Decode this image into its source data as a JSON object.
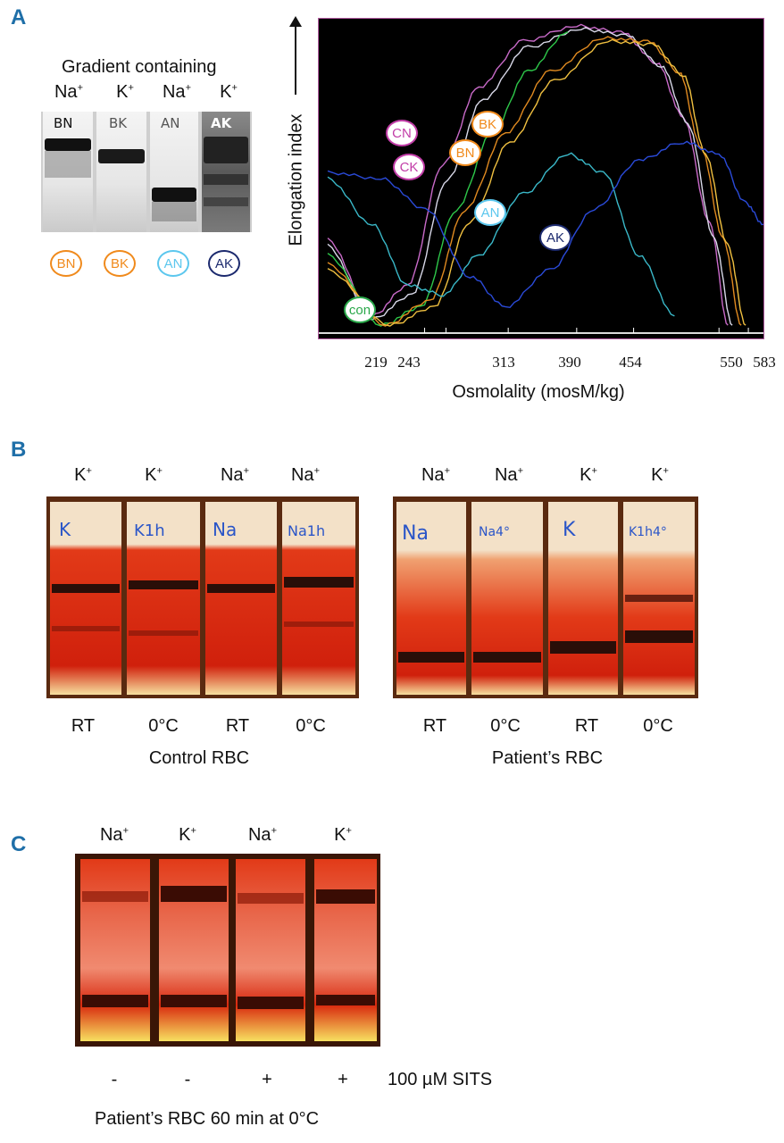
{
  "panels": {
    "a": "A",
    "b": "B",
    "c": "C"
  },
  "panel_a": {
    "gel_title": "Gradient containing",
    "gel_columns": [
      {
        "ion": "Na",
        "charge": "+",
        "scrawl": "BN"
      },
      {
        "ion": "K",
        "charge": "+",
        "scrawl": "BK"
      },
      {
        "ion": "Na",
        "charge": "+",
        "scrawl": "AN"
      },
      {
        "ion": "K",
        "charge": "+",
        "scrawl": "AK"
      }
    ],
    "sample_circles": [
      "BN",
      "BK",
      "AN",
      "AK"
    ],
    "colors": {
      "BN": "#f08a1c",
      "BK": "#f08a1c",
      "AN": "#5cc7ee",
      "AK": "#1c2a6e",
      "CN": "#c23ea8",
      "CK": "#c23ea8",
      "con": "#2aa84a"
    }
  },
  "chart_data": {
    "type": "line",
    "title": "",
    "xlabel": "Osmolality (mosM/kg)",
    "ylabel": "Elongation index",
    "x_ticks": [
      "219",
      "243",
      "313",
      "390",
      "454",
      "550",
      "583"
    ],
    "x_range": [
      100,
      600
    ],
    "series_labels": [
      "CN",
      "CK",
      "BK",
      "BN",
      "AN",
      "AK",
      "con"
    ],
    "series": [
      {
        "name": "CN",
        "color": "#c86ac8",
        "x": [
          110,
          160,
          200,
          240,
          280,
          330,
          390,
          440,
          480,
          510,
          540,
          560
        ],
        "y": [
          0.3,
          0.05,
          0.15,
          0.55,
          0.8,
          0.95,
          1.0,
          0.98,
          0.88,
          0.7,
          0.35,
          0.02
        ]
      },
      {
        "name": "CK",
        "color": "#d8d8e8",
        "x": [
          110,
          160,
          205,
          245,
          285,
          335,
          395,
          445,
          485,
          515,
          545,
          565
        ],
        "y": [
          0.28,
          0.04,
          0.12,
          0.5,
          0.76,
          0.93,
          0.99,
          0.97,
          0.87,
          0.68,
          0.3,
          0.02
        ]
      },
      {
        "name": "con",
        "color": "#2ec84a",
        "x": [
          110,
          170,
          215,
          255,
          295,
          335,
          380
        ],
        "y": [
          0.25,
          0.02,
          0.08,
          0.4,
          0.65,
          0.85,
          0.98
        ]
      },
      {
        "name": "BN",
        "color": "#e08a20",
        "x": [
          110,
          175,
          225,
          265,
          310,
          360,
          420,
          470,
          505,
          530,
          555,
          575
        ],
        "y": [
          0.22,
          0.02,
          0.1,
          0.4,
          0.65,
          0.85,
          0.96,
          0.95,
          0.85,
          0.6,
          0.3,
          0.02
        ]
      },
      {
        "name": "BK",
        "color": "#f0c040",
        "x": [
          110,
          180,
          230,
          270,
          315,
          365,
          425,
          475,
          510,
          535,
          560,
          580
        ],
        "y": [
          0.2,
          0.02,
          0.08,
          0.36,
          0.62,
          0.82,
          0.95,
          0.94,
          0.84,
          0.58,
          0.28,
          0.02
        ]
      },
      {
        "name": "AN",
        "color": "#3ab8c8",
        "x": [
          110,
          160,
          200,
          240,
          280,
          330,
          380,
          420,
          460,
          500
        ],
        "y": [
          0.5,
          0.35,
          0.15,
          0.12,
          0.25,
          0.45,
          0.58,
          0.52,
          0.25,
          0.05
        ]
      },
      {
        "name": "AK",
        "color": "#2a4ad8",
        "x": [
          110,
          170,
          220,
          270,
          310,
          360,
          410,
          460,
          510,
          550,
          580,
          600
        ],
        "y": [
          0.52,
          0.5,
          0.4,
          0.18,
          0.08,
          0.2,
          0.4,
          0.56,
          0.62,
          0.58,
          0.42,
          0.35
        ]
      }
    ]
  },
  "panel_b": {
    "left": {
      "ions": [
        "K",
        "K",
        "Na",
        "Na"
      ],
      "temps": [
        "RT",
        "0°C",
        "RT",
        "0°C"
      ],
      "scrawls": [
        "K",
        "K1h",
        "Na",
        "Na1h"
      ],
      "caption": "Control RBC"
    },
    "right": {
      "ions": [
        "Na",
        "Na",
        "K",
        "K"
      ],
      "temps": [
        "RT",
        "0°C",
        "RT",
        "0°C"
      ],
      "scrawls": [
        "Na",
        "Na4°",
        "K",
        "K1h4°"
      ],
      "caption": "Patient’s RBC"
    }
  },
  "panel_c": {
    "ions": [
      "Na",
      "K",
      "Na",
      "K"
    ],
    "sits_marks": [
      "-",
      "-",
      "+",
      "+"
    ],
    "sits_label": "100 µM SITS",
    "caption": "Patient’s RBC 60 min at 0°C"
  }
}
